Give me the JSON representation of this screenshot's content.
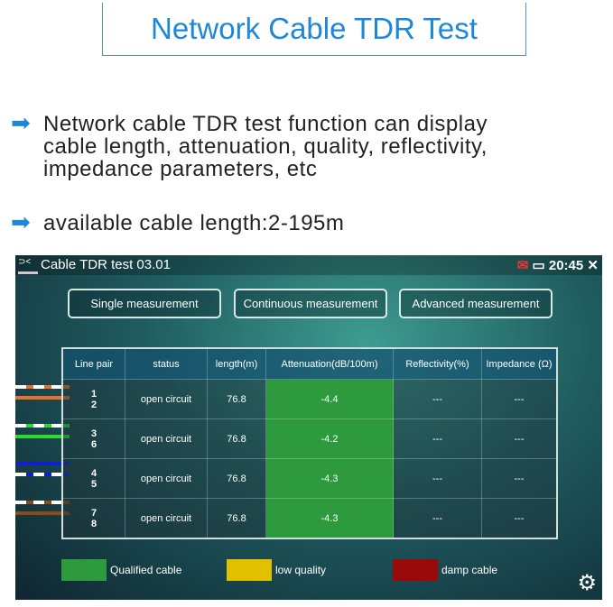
{
  "title": "Network Cable TDR Test",
  "bullets": [
    {
      "icon": "arrow-right-icon",
      "lines": [
        "Network cable TDR test function can display",
        "cable length, attenuation, quality, reflectivity,",
        "impedance parameters, etc"
      ]
    },
    {
      "icon": "arrow-right-icon",
      "lines": [
        "available cable length:2-195m"
      ]
    }
  ],
  "screen": {
    "app_title": "Cable TDR test 03.01",
    "time": "20:45",
    "buttons": [
      "Single measurement",
      "Continuous measurement",
      "Advanced measurement"
    ],
    "columns": [
      "Line pair",
      "status",
      "length(m)",
      "Attenuation(dB/100m)",
      "Reflectivity(%)",
      "Impedance (Ω)"
    ],
    "rows": [
      {
        "pair": [
          "1",
          "2"
        ],
        "status": "open circuit",
        "length": "76.8",
        "attenuation": "-4.4",
        "reflectivity": "---",
        "impedance": "---",
        "wire_color": "#e8702a"
      },
      {
        "pair": [
          "3",
          "6"
        ],
        "status": "open circuit",
        "length": "76.8",
        "attenuation": "-4.2",
        "reflectivity": "---",
        "impedance": "---",
        "wire_color": "#2ed82e"
      },
      {
        "pair": [
          "4",
          "5"
        ],
        "status": "open circuit",
        "length": "76.8",
        "attenuation": "-4.3",
        "reflectivity": "---",
        "impedance": "---",
        "wire_color": "#1020d0"
      },
      {
        "pair": [
          "7",
          "8"
        ],
        "status": "open circuit",
        "length": "76.8",
        "attenuation": "-4.3",
        "reflectivity": "---",
        "impedance": "---",
        "wire_color": "#8a4a1a"
      }
    ],
    "legend": [
      {
        "label": "Qualified cable",
        "color": "#2e9a3e"
      },
      {
        "label": "low quality",
        "color": "#e0c000"
      },
      {
        "label": "damp cable",
        "color": "#9a0a0a"
      }
    ]
  }
}
